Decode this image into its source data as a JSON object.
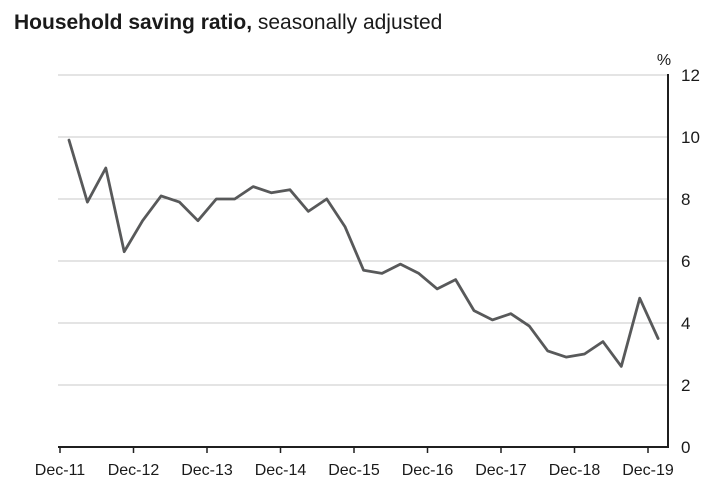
{
  "page": {
    "title_main": "Household saving ratio,",
    "title_note": " seasonally adjusted"
  },
  "chart_data": {
    "type": "line",
    "title": "Household saving ratio",
    "subtitle": "seasonally adjusted",
    "frequency": "quarterly",
    "categories": [
      "Dec-11",
      "Mar-12",
      "Jun-12",
      "Sep-12",
      "Dec-12",
      "Mar-13",
      "Jun-13",
      "Sep-13",
      "Dec-13",
      "Mar-14",
      "Jun-14",
      "Sep-14",
      "Dec-14",
      "Mar-15",
      "Jun-15",
      "Sep-15",
      "Dec-15",
      "Mar-16",
      "Jun-16",
      "Sep-16",
      "Dec-16",
      "Mar-17",
      "Jun-17",
      "Sep-17",
      "Dec-17",
      "Mar-18",
      "Jun-18",
      "Sep-18",
      "Dec-18",
      "Mar-19",
      "Jun-19",
      "Sep-19",
      "Dec-19"
    ],
    "values": [
      9.9,
      7.9,
      9.0,
      6.3,
      7.3,
      8.1,
      7.9,
      7.3,
      8.0,
      8.0,
      8.4,
      8.2,
      8.3,
      7.6,
      8.0,
      7.1,
      5.7,
      5.6,
      5.9,
      5.6,
      5.1,
      5.4,
      4.4,
      4.1,
      4.3,
      3.9,
      3.1,
      2.9,
      3.0,
      3.4,
      2.6,
      4.8,
      3.5
    ],
    "x_tick_labels": [
      "Dec-11",
      "Dec-12",
      "Dec-13",
      "Dec-14",
      "Dec-15",
      "Dec-16",
      "Dec-17",
      "Dec-18",
      "Dec-19"
    ],
    "xlabel": "",
    "ylabel": "%",
    "ylim": [
      0,
      12
    ],
    "yticks": [
      0,
      2,
      4,
      6,
      8,
      10,
      12
    ],
    "grid": "horizontal",
    "legend": "none",
    "y_axis_side": "right",
    "line_color": "#58595a",
    "axis_color": "#1f1f1f",
    "grid_color": "#c8c8c8",
    "text_color": "#1a1a1a"
  }
}
